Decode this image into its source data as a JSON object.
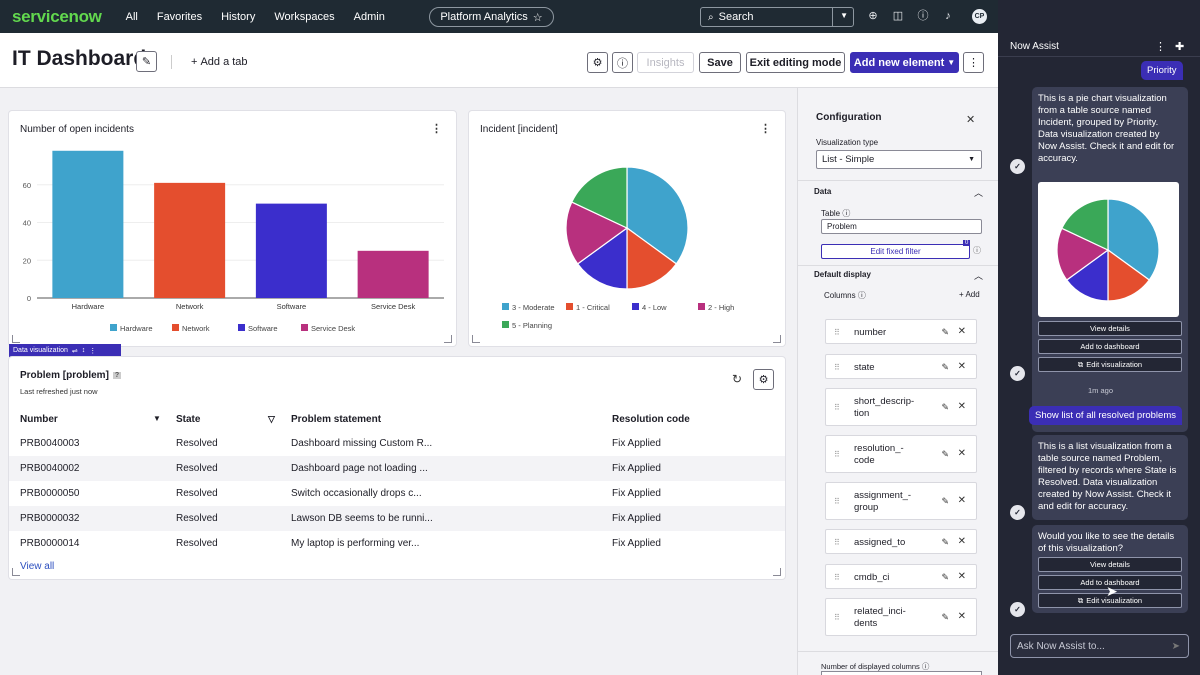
{
  "nav": {
    "brand": "servicenow",
    "links": [
      "All",
      "Favorites",
      "History",
      "Workspaces",
      "Admin"
    ],
    "pill": "Platform Analytics",
    "search_placeholder": "Search",
    "avatar": "CP"
  },
  "toolbar": {
    "title": "IT Dashboard",
    "add_tab": "Add a tab",
    "insights": "Insights",
    "save": "Save",
    "exit_editing": "Exit editing mode",
    "add_element": "Add new element"
  },
  "bar_card": {
    "title": "Number of open incidents",
    "chart_data": {
      "type": "bar",
      "categories": [
        "Hardware",
        "Network",
        "Software",
        "Service Desk"
      ],
      "values": [
        78,
        61,
        50,
        25
      ],
      "ylim": [
        0,
        80
      ],
      "yticks": [
        "0",
        "20",
        "40",
        "60"
      ],
      "colors": [
        "#3fa3cc",
        "#e44e2e",
        "#3b2ecc",
        "#b8307e"
      ],
      "legend": [
        "Hardware",
        "Network",
        "Software",
        "Service Desk"
      ]
    }
  },
  "pie_card": {
    "title": "Incident [incident]",
    "chart_data": {
      "type": "pie",
      "slices": [
        {
          "label": "3 - Moderate",
          "value": 35,
          "color": "#3fa3cc"
        },
        {
          "label": "1 - Critical",
          "value": 15,
          "color": "#e44e2e"
        },
        {
          "label": "4 - Low",
          "value": 15,
          "color": "#3b2ecc"
        },
        {
          "label": "2 - High",
          "value": 17,
          "color": "#b8307e"
        },
        {
          "label": "5 - Planning",
          "value": 18,
          "color": "#3aa858"
        }
      ]
    }
  },
  "dv_bar": {
    "label": "Data visualization"
  },
  "table_card": {
    "title": "Problem [problem]",
    "subtitle": "Last refreshed just now",
    "headers": [
      "Number",
      "State",
      "Problem statement",
      "Resolution code"
    ],
    "rows": [
      [
        "PRB0040003",
        "Resolved",
        "Dashboard missing Custom R...",
        "Fix Applied"
      ],
      [
        "PRB0040002",
        "Resolved",
        "Dashboard page not loading ...",
        "Fix Applied"
      ],
      [
        "PRB0000050",
        "Resolved",
        "Switch occasionally drops c...",
        "Fix Applied"
      ],
      [
        "PRB0000032",
        "Resolved",
        "Lawson DB seems to be runni...",
        "Fix Applied"
      ],
      [
        "PRB0000014",
        "Resolved",
        "My laptop is performing ver...",
        "Fix Applied"
      ]
    ],
    "view_all": "View all"
  },
  "config": {
    "title": "Configuration",
    "viz_type_label": "Visualization type",
    "viz_type_value": "List - Simple",
    "data_section": "Data",
    "table_label": "Table",
    "table_value": "Problem",
    "edit_filter": "Edit fixed filter",
    "filter_count": "0",
    "default_display": "Default display",
    "columns_label": "Columns",
    "add": "Add",
    "columns": [
      [
        "number"
      ],
      [
        "state"
      ],
      [
        "short_descrip-",
        "tion"
      ],
      [
        "resolution_-",
        "code"
      ],
      [
        "assignment_-",
        "group"
      ],
      [
        "assigned_to"
      ],
      [
        "cmdb_ci"
      ],
      [
        "related_inci-",
        "dents"
      ]
    ],
    "num_displayed": "Number of displayed columns"
  },
  "assist": {
    "title": "Now Assist",
    "prev_user": "Priority",
    "bubble1": "This is a pie chart visualization from a table source named Incident, grouped by Priority. Data visualization created by Now Assist. Check it and edit for accuracy.",
    "view_details": "View details",
    "add_to_dashboard": "Add to dashboard",
    "edit_visualization": "Edit visualization",
    "timestamp": "1m ago",
    "user_msg": "Show list of all resolved problems",
    "bubble2": "This is a list visualization from a table source named Problem, filtered by records where State is Resolved. Data visualization created by Now Assist. Check it and edit for accuracy.",
    "bubble3": "Would you like to see the details of this visualization?",
    "input_placeholder": "Ask Now Assist to..."
  }
}
